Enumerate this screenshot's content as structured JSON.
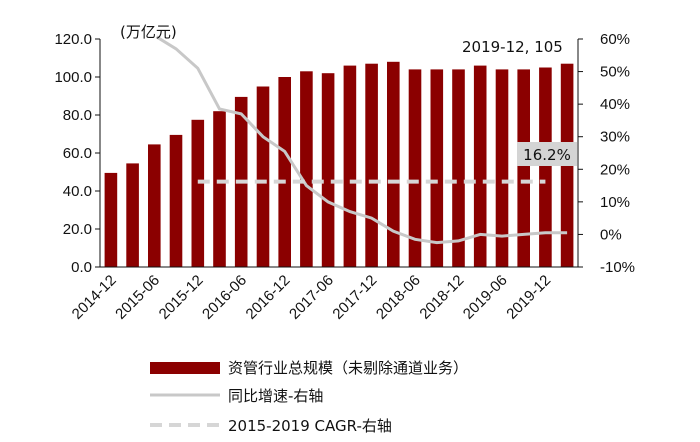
{
  "chart_data": {
    "type": "bar+line",
    "unit_label": "(万亿元)",
    "categories": [
      "2014-12",
      "2015-03",
      "2015-06",
      "2015-09",
      "2015-12",
      "2016-03",
      "2016-06",
      "2016-09",
      "2016-12",
      "2017-03",
      "2017-06",
      "2017-09",
      "2017-12",
      "2018-03",
      "2018-06",
      "2018-09",
      "2018-12",
      "2019-03",
      "2019-06",
      "2019-09",
      "2019-12",
      "2020-03"
    ],
    "x_tick_labels": [
      "2014-12",
      "2015-06",
      "2015-12",
      "2016-06",
      "2016-12",
      "2017-06",
      "2017-12",
      "2018-06",
      "2018-12",
      "2019-06",
      "2019-12"
    ],
    "series": [
      {
        "name": "资管行业总规模（未剔除通道业务）",
        "axis": "left",
        "color": "#8b0000",
        "values": [
          49.5,
          54.5,
          64.5,
          69.5,
          77.5,
          82.0,
          89.5,
          95.0,
          100.0,
          103.0,
          102.0,
          106.0,
          107.0,
          108.0,
          104.0,
          104.0,
          104.0,
          106.0,
          104.0,
          104.0,
          105.0,
          107.0
        ]
      },
      {
        "name": "同比增速-右轴",
        "axis": "right",
        "color": "#c8c8c8",
        "values": [
          null,
          null,
          null,
          57.0,
          51.0,
          38.5,
          37.0,
          30.0,
          25.5,
          15.0,
          10.0,
          7.0,
          5.0,
          1.0,
          -1.5,
          -2.5,
          -2.0,
          0.0,
          -0.5,
          0.0,
          0.5,
          0.5
        ]
      },
      {
        "name": "2015-2019 CAGR-右轴",
        "axis": "right",
        "color": "#d6d6d6",
        "value": 16.2,
        "from": "2015-12",
        "to": "2019-12"
      }
    ],
    "y_left": {
      "ticks": [
        "0.0",
        "20.0",
        "40.0",
        "60.0",
        "80.0",
        "100.0",
        "120.0"
      ],
      "min": 0,
      "max": 120
    },
    "y_right": {
      "ticks": [
        "-10%",
        "0%",
        "10%",
        "20%",
        "30%",
        "40%",
        "50%",
        "60%"
      ],
      "min": -10,
      "max": 60
    },
    "annotations": [
      {
        "text": "2019-12, 105"
      },
      {
        "text": "16.2%"
      }
    ]
  }
}
